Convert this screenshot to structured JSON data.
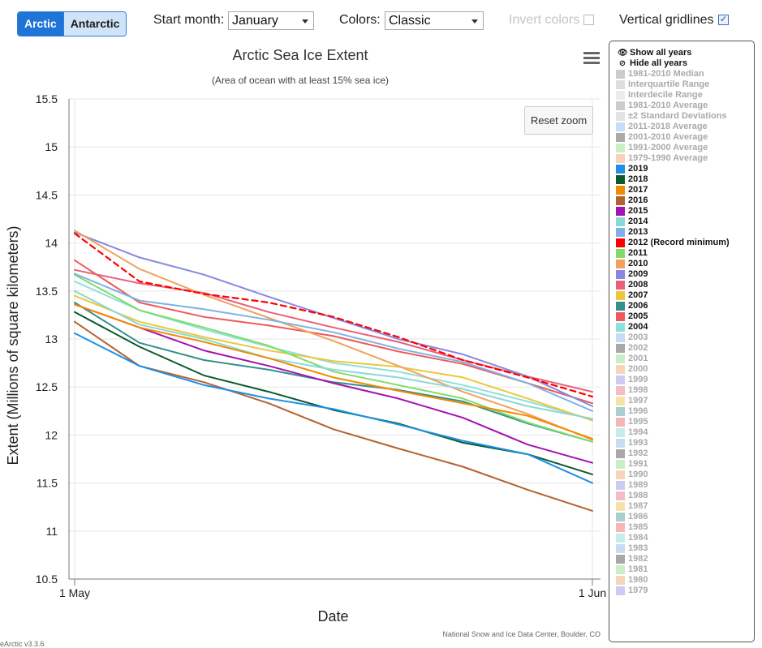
{
  "toolbar": {
    "hemisphere_buttons": [
      "Arctic",
      "Antarctic"
    ],
    "start_month_label": "Start month:",
    "start_month_value": "January",
    "colors_label": "Colors:",
    "colors_value": "Classic",
    "invert_colors_label": "Invert colors",
    "invert_colors_checked": false,
    "vertical_gridlines_label": "Vertical gridlines",
    "vertical_gridlines_checked": true,
    "checkbox_check_glyph": "✓"
  },
  "chart_buttons": {
    "reset_zoom": "Reset zoom",
    "menu_icon": "hamburger-menu-icon"
  },
  "legend": {
    "show_all": "Show all years",
    "hide_all": "Hide all years",
    "show_icon": "eye-icon",
    "hide_icon": "eye-slash-icon",
    "items": [
      {
        "label": "1981-2010 Median",
        "color": "#cccccc",
        "active": false
      },
      {
        "label": "Interquartile Range",
        "color": "#dddddd",
        "active": false
      },
      {
        "label": "Interdecile Range",
        "color": "#ececec",
        "active": false
      },
      {
        "label": "1981-2010 Average",
        "color": "#cccccc",
        "active": false
      },
      {
        "label": "±2 Standard Deviations",
        "color": "#e3e3e3",
        "active": false
      },
      {
        "label": "2011-2018 Average",
        "color": "#c6def5",
        "active": false
      },
      {
        "label": "2001-2010 Average",
        "color": "#aaaaaa",
        "active": false
      },
      {
        "label": "1991-2000 Average",
        "color": "#cbf0c0",
        "active": false
      },
      {
        "label": "1979-1990 Average",
        "color": "#f8d2bd",
        "active": false
      },
      {
        "label": "2019",
        "color": "#1e90e8",
        "active": true
      },
      {
        "label": "2018",
        "color": "#0a5a2d",
        "active": true
      },
      {
        "label": "2017",
        "color": "#f28a00",
        "active": true
      },
      {
        "label": "2016",
        "color": "#b5612e",
        "active": true
      },
      {
        "label": "2015",
        "color": "#a312b0",
        "active": true
      },
      {
        "label": "2014",
        "color": "#8ad8d6",
        "active": true
      },
      {
        "label": "2013",
        "color": "#7eb2e6",
        "active": true
      },
      {
        "label": "2012 (Record minimum)",
        "color": "#ff0000",
        "active": true
      },
      {
        "label": "2011",
        "color": "#7fdc6a",
        "active": true
      },
      {
        "label": "2010",
        "color": "#f2a15c",
        "active": true
      },
      {
        "label": "2009",
        "color": "#8888e0",
        "active": true
      },
      {
        "label": "2008",
        "color": "#e8607a",
        "active": true
      },
      {
        "label": "2007",
        "color": "#ecc63c",
        "active": true
      },
      {
        "label": "2006",
        "color": "#35908a",
        "active": true
      },
      {
        "label": "2005",
        "color": "#ee5a5a",
        "active": true
      },
      {
        "label": "2004",
        "color": "#8ee0dd",
        "active": true
      },
      {
        "label": "2003",
        "color": "#c5dcf2",
        "active": false
      },
      {
        "label": "2002",
        "color": "#a8a8a8",
        "active": false
      },
      {
        "label": "2001",
        "color": "#c9f0c4",
        "active": false
      },
      {
        "label": "2000",
        "color": "#f8d5b8",
        "active": false
      },
      {
        "label": "1999",
        "color": "#ccccf2",
        "active": false
      },
      {
        "label": "1998",
        "color": "#f5bcc6",
        "active": false
      },
      {
        "label": "1997",
        "color": "#f6e2a8",
        "active": false
      },
      {
        "label": "1996",
        "color": "#a8cfcb",
        "active": false
      },
      {
        "label": "1995",
        "color": "#f6b6b6",
        "active": false
      },
      {
        "label": "1994",
        "color": "#c6ecea",
        "active": false
      },
      {
        "label": "1993",
        "color": "#c5dcf2",
        "active": false
      },
      {
        "label": "1992",
        "color": "#a8a8a8",
        "active": false
      },
      {
        "label": "1991",
        "color": "#c9f0c4",
        "active": false
      },
      {
        "label": "1990",
        "color": "#f8d5b8",
        "active": false
      },
      {
        "label": "1989",
        "color": "#ccccf2",
        "active": false
      },
      {
        "label": "1988",
        "color": "#f5bcc6",
        "active": false
      },
      {
        "label": "1987",
        "color": "#f6e2a8",
        "active": false
      },
      {
        "label": "1986",
        "color": "#a8cfcb",
        "active": false
      },
      {
        "label": "1985",
        "color": "#f6b6b6",
        "active": false
      },
      {
        "label": "1984",
        "color": "#c6ecea",
        "active": false
      },
      {
        "label": "1983",
        "color": "#c5dcf2",
        "active": false
      },
      {
        "label": "1982",
        "color": "#a8a8a8",
        "active": false
      },
      {
        "label": "1981",
        "color": "#c9f0c4",
        "active": false
      },
      {
        "label": "1980",
        "color": "#f8d5b8",
        "active": false
      },
      {
        "label": "1979",
        "color": "#ccccf2",
        "active": false
      }
    ]
  },
  "credits": "National Snow and Ice Data Center, Boulder, CO",
  "version": "eArctic v3.3.6",
  "chart_data": {
    "type": "line",
    "title": "Arctic Sea Ice Extent",
    "subtitle": "(Area of ocean with at least 15% sea ice)",
    "xlabel": "Date",
    "ylabel": "Extent (Millions of square kilometers)",
    "x_ticks": [
      "1 May",
      "1 Jun"
    ],
    "x_range": [
      "May 1",
      "Jun 1"
    ],
    "ylim": [
      10.5,
      15.5
    ],
    "y_ticks": [
      10.5,
      11,
      11.5,
      12,
      12.5,
      13,
      13.5,
      14,
      14.5,
      15,
      15.5
    ],
    "x": [
      "May 1",
      "May 5",
      "May 9",
      "May 13",
      "May 17",
      "May 21",
      "May 25",
      "May 29",
      "Jun 1"
    ],
    "vertical_gridlines": true,
    "series": [
      {
        "name": "2004",
        "color": "#8ee0dd",
        "dashed": false,
        "values": [
          13.6,
          13.3,
          13.1,
          12.92,
          12.75,
          12.66,
          12.52,
          12.35,
          12.16
        ]
      },
      {
        "name": "2005",
        "color": "#ee5a5a",
        "dashed": false,
        "values": [
          13.82,
          13.38,
          13.23,
          13.14,
          13.03,
          12.87,
          12.74,
          12.54,
          12.33
        ]
      },
      {
        "name": "2006",
        "color": "#35908a",
        "dashed": false,
        "values": [
          13.38,
          12.96,
          12.78,
          12.68,
          12.55,
          12.47,
          12.35,
          12.12,
          11.93
        ]
      },
      {
        "name": "2007",
        "color": "#ecc63c",
        "dashed": false,
        "values": [
          13.45,
          13.18,
          13.02,
          12.88,
          12.77,
          12.71,
          12.6,
          12.38,
          12.15
        ]
      },
      {
        "name": "2008",
        "color": "#e8607a",
        "dashed": false,
        "values": [
          13.72,
          13.58,
          13.48,
          13.28,
          13.12,
          12.97,
          12.78,
          12.61,
          12.45
        ]
      },
      {
        "name": "2009",
        "color": "#8888e0",
        "dashed": false,
        "values": [
          14.11,
          13.85,
          13.67,
          13.44,
          13.22,
          13.0,
          12.84,
          12.61,
          12.3
        ]
      },
      {
        "name": "2010",
        "color": "#f2a15c",
        "dashed": false,
        "values": [
          14.13,
          13.73,
          13.46,
          13.22,
          12.98,
          12.72,
          12.45,
          12.22,
          11.95
        ]
      },
      {
        "name": "2011",
        "color": "#7fdc6a",
        "dashed": false,
        "values": [
          13.67,
          13.3,
          13.12,
          12.93,
          12.66,
          12.52,
          12.38,
          12.13,
          11.93
        ]
      },
      {
        "name": "2012 (Record minimum)",
        "color": "#ff0000",
        "dashed": true,
        "values": [
          14.1,
          13.6,
          13.47,
          13.38,
          13.23,
          13.02,
          12.78,
          12.6,
          12.4
        ]
      },
      {
        "name": "2013",
        "color": "#7eb2e6",
        "dashed": false,
        "values": [
          13.68,
          13.4,
          13.31,
          13.2,
          13.07,
          12.9,
          12.76,
          12.54,
          12.25
        ]
      },
      {
        "name": "2014",
        "color": "#8ad8d6",
        "dashed": false,
        "values": [
          13.5,
          13.15,
          13.0,
          12.8,
          12.68,
          12.6,
          12.48,
          12.3,
          12.17
        ]
      },
      {
        "name": "2015",
        "color": "#a312b0",
        "dashed": false,
        "values": [
          13.36,
          13.12,
          12.88,
          12.72,
          12.54,
          12.38,
          12.18,
          11.9,
          11.71
        ]
      },
      {
        "name": "2016",
        "color": "#b5612e",
        "dashed": false,
        "values": [
          13.18,
          12.72,
          12.55,
          12.33,
          12.06,
          11.86,
          11.67,
          11.43,
          11.21
        ]
      },
      {
        "name": "2017",
        "color": "#f28a00",
        "dashed": false,
        "values": [
          13.36,
          13.12,
          12.97,
          12.8,
          12.6,
          12.46,
          12.33,
          12.2,
          11.96
        ]
      },
      {
        "name": "2018",
        "color": "#0a5a2d",
        "dashed": false,
        "values": [
          13.28,
          12.92,
          12.62,
          12.45,
          12.26,
          12.12,
          11.92,
          11.8,
          11.59
        ]
      },
      {
        "name": "2019",
        "color": "#1e90e8",
        "dashed": false,
        "values": [
          13.06,
          12.72,
          12.52,
          12.38,
          12.27,
          12.11,
          11.94,
          11.8,
          11.5
        ]
      }
    ]
  }
}
